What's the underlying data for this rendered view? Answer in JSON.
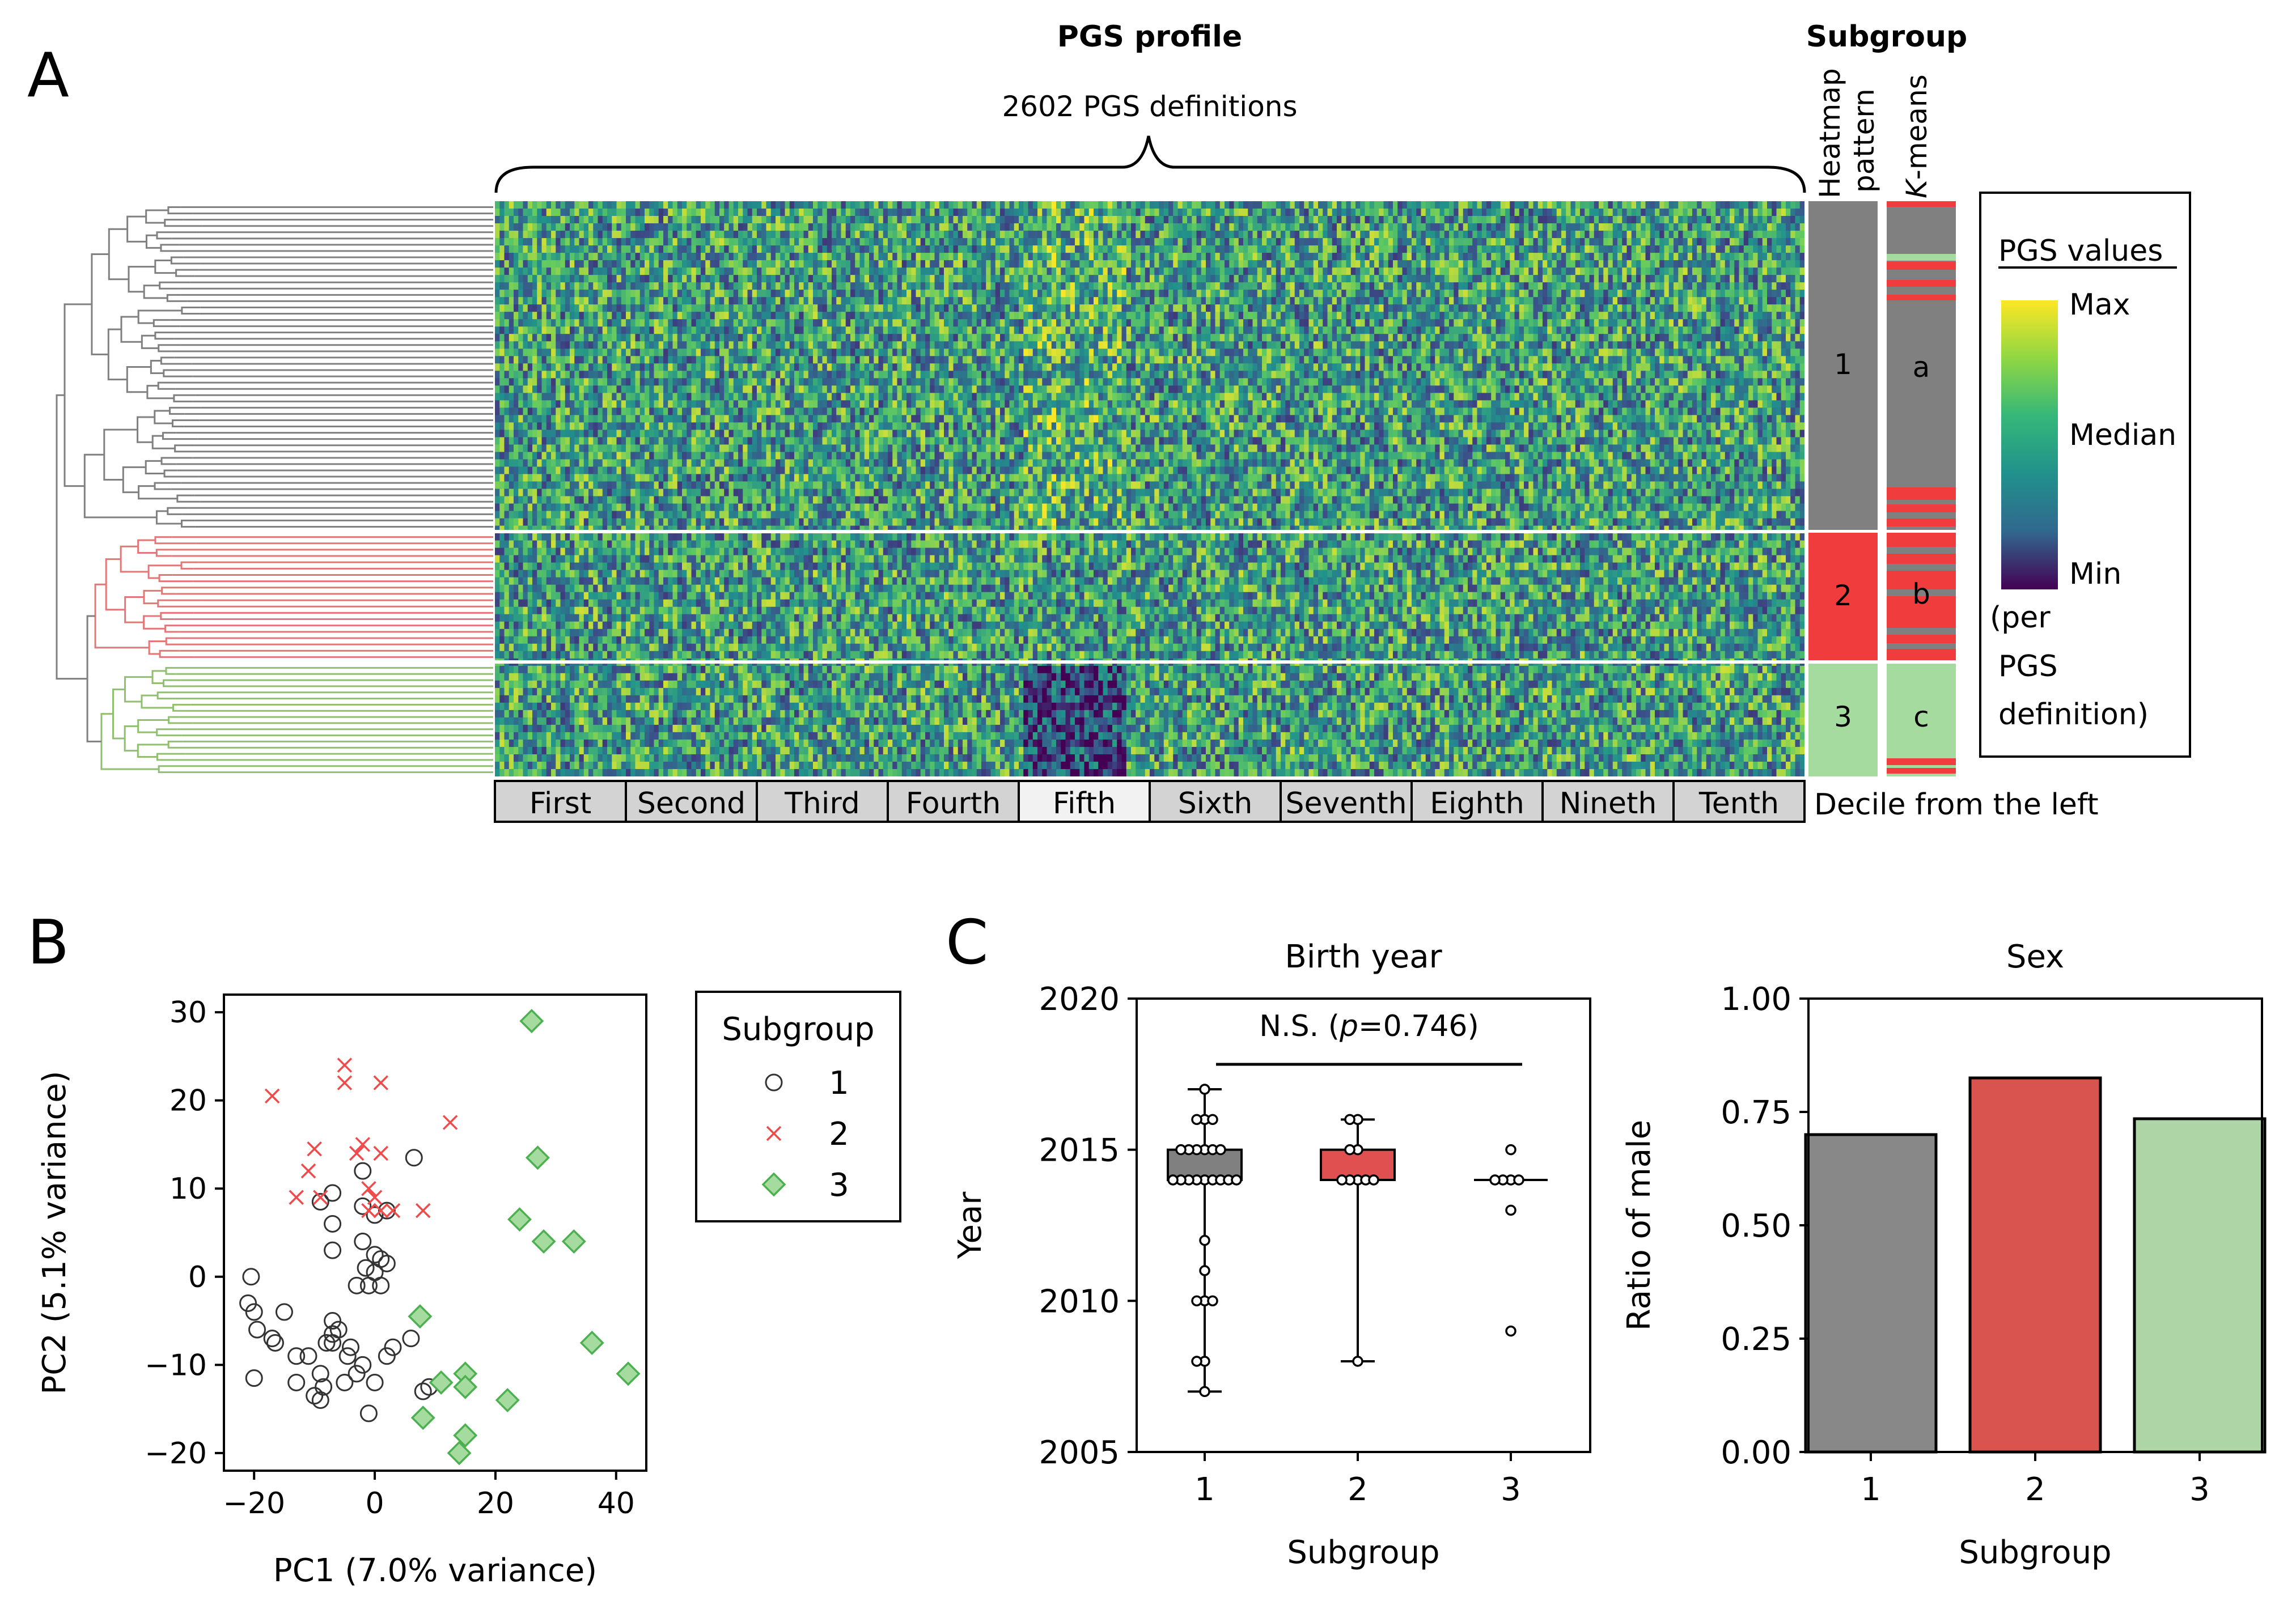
{
  "colors": {
    "subgroup1": "#808080",
    "subgroup2": "#f03c3c",
    "subgroup3": "#a6dba0",
    "box1": "#808080",
    "box2": "#e05050",
    "bar1": "#888888",
    "bar2": "#d9534f",
    "bar3": "#add5a6",
    "dendro1": "#808080",
    "dendro2": "#e37777",
    "dendro3": "#8fbf6f",
    "scatter2": "#f04a4a",
    "scatter3": "#4caf50",
    "scatter3_fill": "#a6dba0",
    "decile_shade": "#d3d3d3",
    "decile_light": "#f2f2f2"
  },
  "panelA": {
    "letter": "A",
    "title": "PGS profile",
    "subtitle": "2602 PGS definitions",
    "subgroup_title": "Subgroup",
    "col1_label_line1": "Heatmap",
    "col1_label_line2": "pattern",
    "col2_label_prefix": "K",
    "col2_label_suffix": "-means",
    "heatmap_groups": [
      "1",
      "2",
      "3"
    ],
    "kmeans_groups": [
      "a",
      "b",
      "c"
    ],
    "deciles": [
      "First",
      "Second",
      "Third",
      "Fourth",
      "Fifth",
      "Sixth",
      "Seventh",
      "Eighth",
      "Nineth",
      "Tenth"
    ],
    "decile_caption": "Decile from the left",
    "legend": {
      "title": "PGS values",
      "max": "Max",
      "median": "Median",
      "min": "Min",
      "note_lines": [
        "(per",
        "PGS",
        "definition)"
      ]
    },
    "gradient": [
      "#440154",
      "#31688e",
      "#21918c",
      "#35b779",
      "#90d743",
      "#fde725"
    ]
  },
  "chart_data": [
    {
      "type": "scatter",
      "panel": "B",
      "xlabel": "PC1 (7.0% variance)",
      "ylabel": "PC2 (5.1% variance)",
      "xlim": [
        -25,
        45
      ],
      "ylim": [
        -22,
        32
      ],
      "xticks": [
        -20,
        0,
        20,
        40
      ],
      "yticks": [
        -20,
        -10,
        0,
        10,
        20,
        30
      ],
      "legend_title": "Subgroup",
      "series": [
        {
          "name": "1",
          "marker": "circle",
          "points": [
            [
              -20.5,
              0
            ],
            [
              -21,
              -3
            ],
            [
              -20,
              -4
            ],
            [
              -19.5,
              -6
            ],
            [
              -20,
              -11.5
            ],
            [
              -17,
              -7
            ],
            [
              -16.5,
              -7.5
            ],
            [
              -15,
              -4
            ],
            [
              -13,
              -9
            ],
            [
              -13,
              -12
            ],
            [
              -11,
              -9
            ],
            [
              -10,
              -13.5
            ],
            [
              -9,
              -14
            ],
            [
              -9,
              -11
            ],
            [
              -8,
              -7.5
            ],
            [
              -7,
              -6.5
            ],
            [
              -7,
              -7.5
            ],
            [
              -8.5,
              -12.5
            ],
            [
              -7,
              -5
            ],
            [
              -6,
              -6
            ],
            [
              -5,
              -12
            ],
            [
              -4,
              -8
            ],
            [
              -4.5,
              -9
            ],
            [
              -3,
              -11
            ],
            [
              -2,
              -10
            ],
            [
              -1,
              -15.5
            ],
            [
              0,
              -12
            ],
            [
              -9,
              8.5
            ],
            [
              -7,
              9.5
            ],
            [
              -7,
              6
            ],
            [
              -7,
              3
            ],
            [
              -2,
              4
            ],
            [
              -1.5,
              1
            ],
            [
              -1,
              -1
            ],
            [
              -3,
              -1
            ],
            [
              0,
              0.5
            ],
            [
              1,
              2
            ],
            [
              2,
              1.5
            ],
            [
              1,
              -1
            ],
            [
              0,
              2.5
            ],
            [
              0,
              7
            ],
            [
              -2,
              12
            ],
            [
              -2,
              8
            ],
            [
              2,
              7.5
            ],
            [
              3,
              -8
            ],
            [
              2,
              -9
            ],
            [
              6,
              -7
            ],
            [
              6.5,
              13.5
            ],
            [
              9,
              -12.5
            ],
            [
              8,
              -13
            ]
          ]
        },
        {
          "name": "2",
          "marker": "x",
          "points": [
            [
              -17,
              20.5
            ],
            [
              -13,
              9
            ],
            [
              -10,
              14.5
            ],
            [
              -11,
              12
            ],
            [
              -9,
              9
            ],
            [
              -5,
              24
            ],
            [
              -5,
              22
            ],
            [
              -3,
              14
            ],
            [
              -2,
              15
            ],
            [
              -1,
              10
            ],
            [
              0,
              9
            ],
            [
              1,
              22
            ],
            [
              1,
              14
            ],
            [
              -1,
              7.5
            ],
            [
              1,
              7.5
            ],
            [
              3,
              7.5
            ],
            [
              8,
              7.5
            ],
            [
              12.5,
              17.5
            ]
          ]
        },
        {
          "name": "3",
          "marker": "diamond",
          "points": [
            [
              26,
              29
            ],
            [
              27,
              13.5
            ],
            [
              24,
              6.5
            ],
            [
              28,
              4
            ],
            [
              33,
              4
            ],
            [
              36,
              -7.5
            ],
            [
              42,
              -11
            ],
            [
              22,
              -14
            ],
            [
              15,
              -11
            ],
            [
              15,
              -12.5
            ],
            [
              15,
              -18
            ],
            [
              14,
              -20
            ],
            [
              11,
              -12
            ],
            [
              8,
              -16
            ],
            [
              7.5,
              -4.5
            ]
          ]
        }
      ]
    },
    {
      "type": "box",
      "panel": "C",
      "letter": "C",
      "title": "Birth year",
      "xlabel": "Subgroup",
      "ylabel": "Year",
      "categories": [
        "1",
        "2",
        "3"
      ],
      "ylim": [
        2005,
        2020
      ],
      "yticks": [
        2005,
        2010,
        2015,
        2020
      ],
      "annotation_prefix": "N.S. (",
      "annotation_p": "p",
      "annotation_value": "=0.746)",
      "boxes": [
        {
          "name": "1",
          "min": 2007,
          "q1": 2014,
          "median": 2014,
          "q3": 2015,
          "max": 2017,
          "points": [
            2017,
            2016,
            2016,
            2016,
            2015,
            2015,
            2015,
            2015,
            2015,
            2015,
            2014,
            2014,
            2014,
            2014,
            2014,
            2014,
            2014,
            2014,
            2014,
            2012,
            2011,
            2010,
            2010,
            2010,
            2008,
            2008,
            2007
          ]
        },
        {
          "name": "2",
          "min": 2008,
          "q1": 2014,
          "median": 2014,
          "q3": 2015,
          "max": 2016,
          "points": [
            2016,
            2016,
            2015,
            2015,
            2014,
            2014,
            2014,
            2014,
            2014,
            2008
          ]
        },
        {
          "name": "3",
          "min": 2014,
          "q1": 2014,
          "median": 2014,
          "q3": 2014,
          "max": 2014,
          "points": [
            2015,
            2014,
            2014,
            2014,
            2014,
            2013,
            2009
          ]
        }
      ]
    },
    {
      "type": "bar",
      "title": "Sex",
      "xlabel": "Subgroup",
      "ylabel": "Ratio of male",
      "categories": [
        "1",
        "2",
        "3"
      ],
      "values": [
        0.7,
        0.825,
        0.735
      ],
      "ylim": [
        0,
        1
      ],
      "yticks": [
        "0.00",
        "0.25",
        "0.50",
        "0.75",
        "1.00"
      ]
    }
  ]
}
